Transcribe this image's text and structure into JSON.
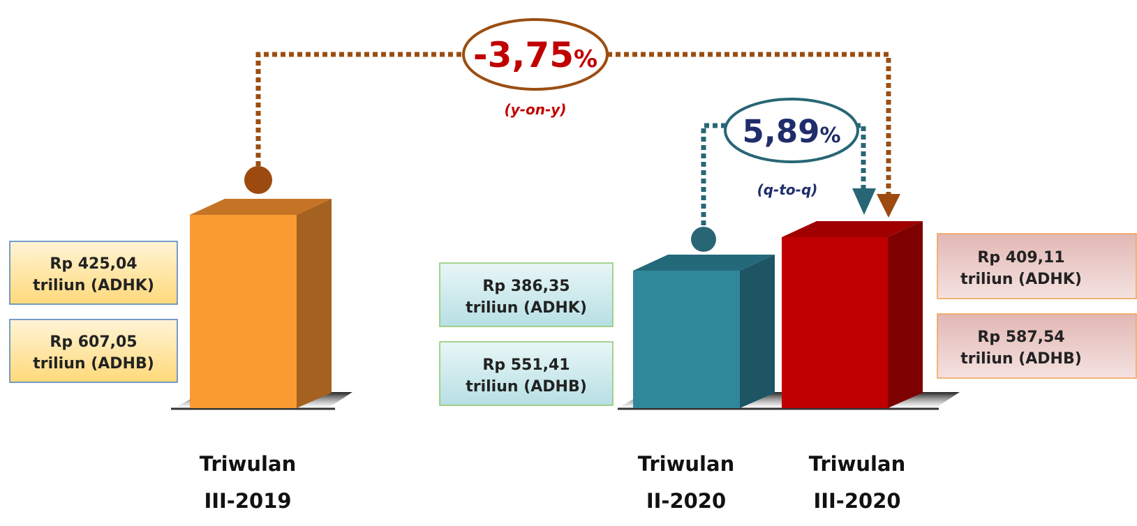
{
  "changes": [
    {
      "number": "-3,75",
      "unit": "%",
      "label": "(y-on-y)"
    },
    {
      "number": "5,89",
      "unit": "%",
      "label": "(q-to-q)"
    }
  ],
  "periods": [
    {
      "name": [
        "Triwulan",
        "III-2019"
      ],
      "adhk": [
        "Rp 425,04",
        "triliun (ADHK)"
      ],
      "adhb": [
        "Rp 607,05",
        "triliun (ADHB)"
      ]
    },
    {
      "name": [
        "Triwulan",
        "II-2020"
      ],
      "adhk": [
        "Rp 386,35",
        "triliun (ADHK)"
      ],
      "adhb": [
        "Rp 551,41",
        "triliun (ADHB)"
      ]
    },
    {
      "name": [
        "Triwulan",
        "III-2020"
      ],
      "adhk": [
        "Rp 409,11",
        "triliun (ADHK)"
      ],
      "adhb": [
        "Rp 587,54",
        "triliun (ADHB)"
      ]
    }
  ]
}
